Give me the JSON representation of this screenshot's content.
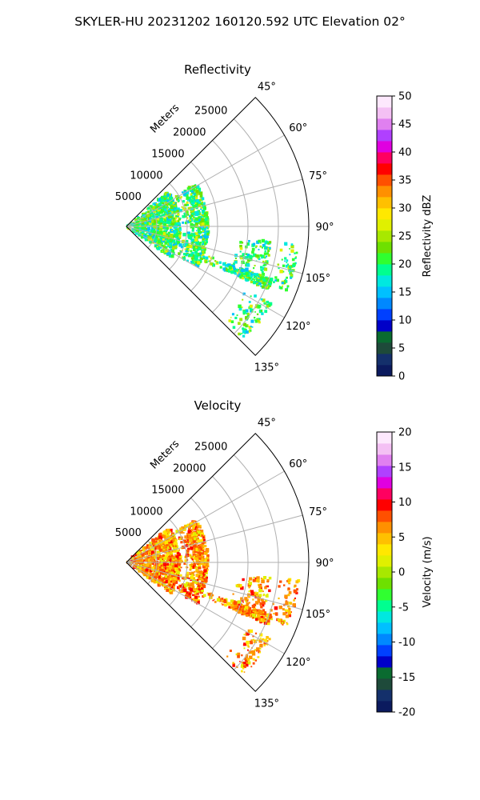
{
  "figure": {
    "suptitle": "SKYLER-HU  20231202  160120.592 UTC Elevation 02°"
  },
  "chart_data": [
    {
      "type": "heatmap",
      "projection": "polar-sector",
      "title": "Reflectivity",
      "radial_label": "Meters",
      "radial_ticks": [
        5000,
        10000,
        15000,
        20000,
        25000
      ],
      "radial_range": [
        0,
        30000
      ],
      "angle_ticks": [
        "45°",
        "60°",
        "75°",
        "90°",
        "105°",
        "120°",
        "135°"
      ],
      "angle_range_deg": [
        45,
        135
      ],
      "grid": true,
      "colorbar": {
        "label": "Reflectivity dBZ",
        "range": [
          0,
          50
        ],
        "ticks": [
          0,
          5,
          10,
          15,
          20,
          25,
          30,
          35,
          40,
          45,
          50
        ],
        "colors": [
          "#0b1a5e",
          "#14306b",
          "#1e4a3a",
          "#0a6b30",
          "#0000c8",
          "#0040ff",
          "#0088ff",
          "#00c0ff",
          "#00e8e0",
          "#00ff90",
          "#30ff30",
          "#6ee000",
          "#a8e800",
          "#e0f000",
          "#ffe800",
          "#ffc000",
          "#ff9000",
          "#ff5000",
          "#ff0000",
          "#ff0060",
          "#e000e0",
          "#b040ff",
          "#e080f0",
          "#f4c0f4",
          "#fde8fd"
        ]
      }
    },
    {
      "type": "heatmap",
      "projection": "polar-sector",
      "title": "Velocity",
      "radial_label": "Meters",
      "radial_ticks": [
        5000,
        10000,
        15000,
        20000,
        25000
      ],
      "radial_range": [
        0,
        30000
      ],
      "angle_ticks": [
        "45°",
        "60°",
        "75°",
        "90°",
        "105°",
        "120°",
        "135°"
      ],
      "angle_range_deg": [
        45,
        135
      ],
      "grid": true,
      "colorbar": {
        "label": "Velocity (m/s)",
        "range": [
          -20,
          20
        ],
        "ticks": [
          -20,
          -15,
          -10,
          -5,
          0,
          5,
          10,
          15,
          20
        ],
        "colors": [
          "#0b1a5e",
          "#14306b",
          "#1e4a3a",
          "#0a6b30",
          "#0000c8",
          "#0040ff",
          "#0088ff",
          "#00c0ff",
          "#00e8e0",
          "#00ff90",
          "#30ff30",
          "#6ee000",
          "#a8e800",
          "#e0f000",
          "#ffe800",
          "#ffc000",
          "#ff9000",
          "#ff5000",
          "#ff0000",
          "#ff0060",
          "#e000e0",
          "#b040ff",
          "#e080f0",
          "#f4c0f4",
          "#fde8fd"
        ]
      }
    }
  ]
}
